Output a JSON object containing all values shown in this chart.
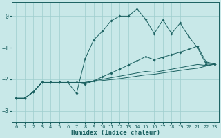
{
  "xlabel": "Humidex (Indice chaleur)",
  "bg_color": "#c8e8e8",
  "grid_color": "#9ecece",
  "line_color": "#1a6060",
  "xlim": [
    -0.5,
    23.5
  ],
  "ylim": [
    -3.35,
    0.45
  ],
  "yticks": [
    0,
    -1,
    -2,
    -3
  ],
  "xticks": [
    0,
    1,
    2,
    3,
    4,
    5,
    6,
    7,
    8,
    9,
    10,
    11,
    12,
    13,
    14,
    15,
    16,
    17,
    18,
    19,
    20,
    21,
    22,
    23
  ],
  "line1_x": [
    0,
    1,
    2,
    3,
    4,
    5,
    6,
    7,
    8,
    9,
    10,
    11,
    12,
    13,
    14,
    15,
    16,
    17,
    18,
    19,
    20,
    21,
    22,
    23
  ],
  "line1_y": [
    -2.6,
    -2.6,
    -2.4,
    -2.1,
    -2.1,
    -2.1,
    -2.1,
    -2.45,
    -1.35,
    -0.75,
    -0.48,
    -0.15,
    0.0,
    0.0,
    0.22,
    -0.1,
    -0.55,
    -0.12,
    -0.55,
    -0.22,
    -0.65,
    -1.0,
    -1.52,
    -1.52
  ],
  "line2_x": [
    0,
    1,
    2,
    3,
    4,
    5,
    6,
    7,
    8,
    9,
    10,
    11,
    12,
    13,
    14,
    15,
    16,
    17,
    18,
    19,
    20,
    21,
    22,
    23
  ],
  "line2_y": [
    -2.6,
    -2.6,
    -2.4,
    -2.1,
    -2.1,
    -2.1,
    -2.1,
    -2.1,
    -2.15,
    -2.05,
    -1.92,
    -1.8,
    -1.68,
    -1.55,
    -1.42,
    -1.28,
    -1.38,
    -1.3,
    -1.22,
    -1.14,
    -1.05,
    -0.95,
    -1.45,
    -1.52
  ],
  "line3_x": [
    0,
    1,
    2,
    3,
    4,
    5,
    6,
    7,
    8,
    9,
    10,
    11,
    12,
    13,
    14,
    15,
    16,
    17,
    18,
    19,
    20,
    21,
    22,
    23
  ],
  "line3_y": [
    -2.6,
    -2.6,
    -2.4,
    -2.1,
    -2.1,
    -2.1,
    -2.1,
    -2.1,
    -2.1,
    -2.05,
    -2.0,
    -1.95,
    -1.9,
    -1.85,
    -1.8,
    -1.75,
    -1.78,
    -1.73,
    -1.68,
    -1.63,
    -1.58,
    -1.53,
    -1.56,
    -1.52
  ],
  "line4_x": [
    0,
    1,
    2,
    3,
    4,
    5,
    6,
    7,
    8,
    9,
    10,
    11,
    12,
    13,
    14,
    15,
    16,
    17,
    18,
    19,
    20,
    21,
    22,
    23
  ],
  "line4_y": [
    -2.6,
    -2.6,
    -2.4,
    -2.1,
    -2.1,
    -2.1,
    -2.1,
    -2.1,
    -2.1,
    -2.07,
    -2.04,
    -2.01,
    -1.98,
    -1.94,
    -1.9,
    -1.86,
    -1.84,
    -1.8,
    -1.76,
    -1.72,
    -1.68,
    -1.65,
    -1.58,
    -1.52
  ]
}
